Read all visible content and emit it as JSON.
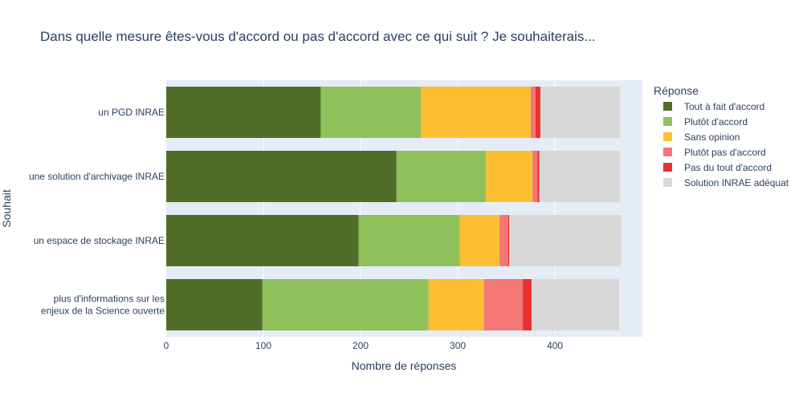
{
  "chart_data": {
    "type": "bar",
    "orientation": "horizontal",
    "stacked": true,
    "title": "Dans quelle mesure êtes-vous d'accord ou pas d'accord avec ce qui suit ? Je souhaiterais...",
    "xlabel": "Nombre de réponses",
    "ylabel": "Souhait",
    "xlim": [
      0,
      490
    ],
    "xticks": [
      0,
      100,
      200,
      300,
      400
    ],
    "grid": true,
    "legend_title": "Réponse",
    "legend_position": "right",
    "categories": [
      [
        "un PGD INRAE"
      ],
      [
        "une solution d'archivage INRAE"
      ],
      [
        "un espace de stockage INRAE"
      ],
      [
        "plus d'informations sur les",
        "enjeux de la Science ouverte"
      ]
    ],
    "series": [
      {
        "name": "Tout à fait d'accord",
        "color": "#506e2a",
        "values": [
          159,
          237,
          198,
          99
        ]
      },
      {
        "name": "Plutôt d'accord",
        "color": "#8fc15b",
        "values": [
          103,
          92,
          104,
          171
        ]
      },
      {
        "name": "Sans opinion",
        "color": "#fbbf31",
        "values": [
          113,
          48,
          41,
          57
        ]
      },
      {
        "name": "Plutôt pas d'accord",
        "color": "#f37774",
        "values": [
          5,
          5,
          9,
          40
        ]
      },
      {
        "name": "Pas du tout d'accord",
        "color": "#e83030",
        "values": [
          5,
          2,
          1,
          9
        ]
      },
      {
        "name": "Solution INRAE adéquat",
        "color": "#d8d8d8",
        "values": [
          82,
          83,
          115,
          90
        ]
      }
    ]
  }
}
